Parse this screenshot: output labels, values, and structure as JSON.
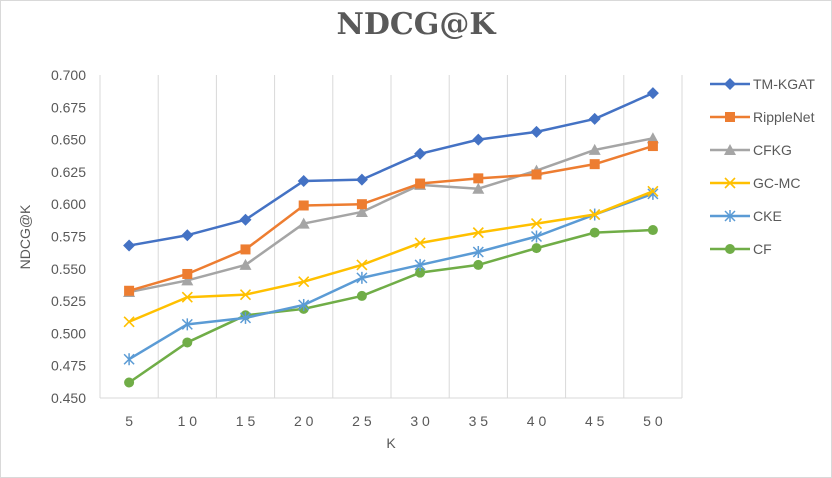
{
  "chart_data": {
    "type": "line",
    "title": "NDCG@K",
    "xlabel": "K",
    "ylabel": "NDCG@K",
    "x": [
      5,
      10,
      15,
      20,
      25,
      30,
      35,
      40,
      45,
      50
    ],
    "ylim": [
      0.45,
      0.7
    ],
    "yticks": [
      "0.450",
      "0.475",
      "0.500",
      "0.525",
      "0.550",
      "0.575",
      "0.600",
      "0.625",
      "0.650",
      "0.675",
      "0.700"
    ],
    "grid": "vertical",
    "legend": "right",
    "series": [
      {
        "name": "TM-KGAT",
        "color": "#4472C4",
        "marker": "diamond",
        "values": [
          0.568,
          0.576,
          0.588,
          0.618,
          0.619,
          0.639,
          0.65,
          0.656,
          0.666,
          0.686
        ]
      },
      {
        "name": "RippleNet",
        "color": "#ED7D31",
        "marker": "square",
        "values": [
          0.533,
          0.546,
          0.565,
          0.599,
          0.6,
          0.616,
          0.62,
          0.623,
          0.631,
          0.645
        ]
      },
      {
        "name": "CFKG",
        "color": "#A5A5A5",
        "marker": "triangle",
        "values": [
          0.532,
          0.541,
          0.553,
          0.585,
          0.594,
          0.615,
          0.612,
          0.626,
          0.642,
          0.651
        ]
      },
      {
        "name": "GC-MC",
        "color": "#FFC000",
        "marker": "x",
        "values": [
          0.509,
          0.528,
          0.53,
          0.54,
          0.553,
          0.57,
          0.578,
          0.585,
          0.592,
          0.61
        ]
      },
      {
        "name": "CKE",
        "color": "#5B9BD5",
        "marker": "star",
        "values": [
          0.48,
          0.507,
          0.512,
          0.522,
          0.543,
          0.553,
          0.563,
          0.575,
          0.592,
          0.608
        ]
      },
      {
        "name": "CF",
        "color": "#70AD47",
        "marker": "circle",
        "values": [
          0.462,
          0.493,
          0.514,
          0.519,
          0.529,
          0.547,
          0.553,
          0.566,
          0.578,
          0.58
        ]
      }
    ]
  }
}
